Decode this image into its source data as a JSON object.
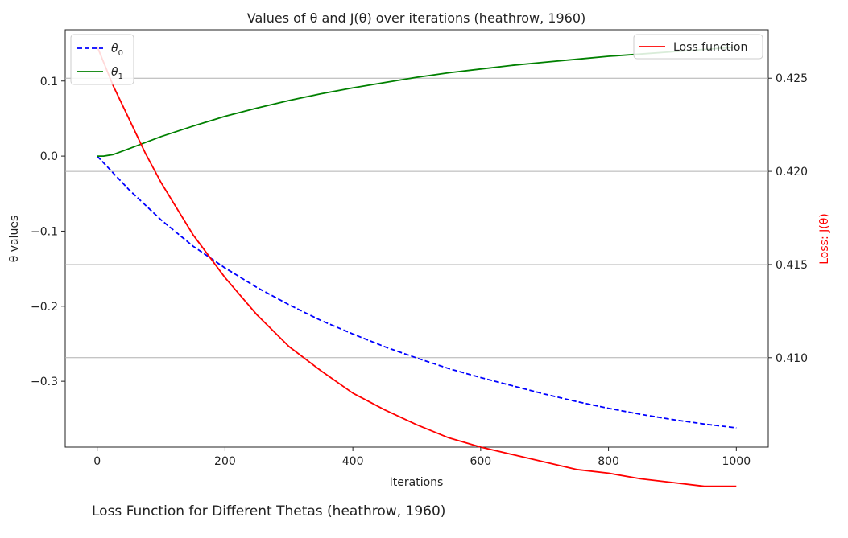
{
  "caption": "Loss Function for Different Thetas (heathrow, 1960)",
  "chart_data": {
    "type": "line",
    "title": "Values of θ and J(θ) over iterations (heathrow, 1960)",
    "xlabel": "Iterations",
    "ylabel_left": "θ values",
    "ylabel_right": "Loss: J(θ)",
    "xlim": [
      -50,
      1050
    ],
    "ylim_left": [
      -0.3877,
      0.1683
    ],
    "ylim_right": [
      0.4052,
      0.4276
    ],
    "x_ticks": [
      0,
      200,
      400,
      600,
      800,
      1000
    ],
    "x_tick_labels": [
      "0",
      "200",
      "400",
      "600",
      "800",
      "1000"
    ],
    "y_left_ticks": [
      0.1,
      0.0,
      -0.1,
      -0.2,
      -0.3
    ],
    "y_left_tick_labels": [
      "0.1",
      "0.0",
      "−0.1",
      "−0.2",
      "−0.3"
    ],
    "y_right_ticks": [
      0.425,
      0.42,
      0.415,
      0.41
    ],
    "y_right_tick_labels": [
      "0.425",
      "0.420",
      "0.415",
      "0.410"
    ],
    "grid": "horizontal lines at right-axis ticks",
    "legend_left": {
      "placement": "top-left",
      "entries": [
        {
          "label": "θ",
          "sub": "0",
          "color": "#0000ff",
          "dash": "dashed"
        },
        {
          "label": "θ",
          "sub": "1",
          "color": "#008000",
          "dash": "solid"
        }
      ]
    },
    "legend_right": {
      "placement": "top-right",
      "entries": [
        {
          "label": "Loss function",
          "color": "#ff0000",
          "dash": "solid"
        }
      ]
    },
    "series": [
      {
        "name": "θ₀",
        "axis": "left",
        "color": "#0000ff",
        "dash": "dashed",
        "x": [
          0,
          50,
          100,
          150,
          200,
          250,
          300,
          350,
          400,
          450,
          500,
          550,
          600,
          650,
          700,
          750,
          800,
          850,
          900,
          950,
          1000
        ],
        "values": [
          0.0,
          -0.045,
          -0.085,
          -0.12,
          -0.149,
          -0.175,
          -0.198,
          -0.219,
          -0.237,
          -0.254,
          -0.269,
          -0.283,
          -0.295,
          -0.306,
          -0.317,
          -0.327,
          -0.336,
          -0.344,
          -0.351,
          -0.357,
          -0.362
        ]
      },
      {
        "name": "θ₁",
        "axis": "left",
        "color": "#008000",
        "dash": "solid",
        "x": [
          0,
          10,
          25,
          50,
          100,
          150,
          200,
          250,
          300,
          350,
          400,
          450,
          500,
          550,
          600,
          650,
          700,
          750,
          800,
          850,
          900,
          950,
          1000
        ],
        "values": [
          0.0,
          0.0,
          0.002,
          0.01,
          0.026,
          0.04,
          0.053,
          0.064,
          0.074,
          0.083,
          0.091,
          0.098,
          0.105,
          0.111,
          0.116,
          0.121,
          0.125,
          0.129,
          0.133,
          0.136,
          0.139,
          0.142,
          0.145
        ]
      },
      {
        "name": "Loss function",
        "axis": "right",
        "color": "#ff0000",
        "dash": "solid",
        "x": [
          0,
          25,
          50,
          75,
          100,
          150,
          200,
          250,
          300,
          350,
          400,
          450,
          500,
          550,
          600,
          650,
          700,
          750,
          800,
          850,
          900,
          950,
          1000
        ],
        "values": [
          0.4267,
          0.4246,
          0.4228,
          0.421,
          0.4194,
          0.4166,
          0.4143,
          0.4123,
          0.4106,
          0.4093,
          0.4081,
          0.4072,
          0.4064,
          0.4057,
          0.4052,
          0.4048,
          0.4044,
          0.404,
          0.4038,
          0.4035,
          0.4033,
          0.4031,
          0.4031
        ]
      }
    ]
  }
}
